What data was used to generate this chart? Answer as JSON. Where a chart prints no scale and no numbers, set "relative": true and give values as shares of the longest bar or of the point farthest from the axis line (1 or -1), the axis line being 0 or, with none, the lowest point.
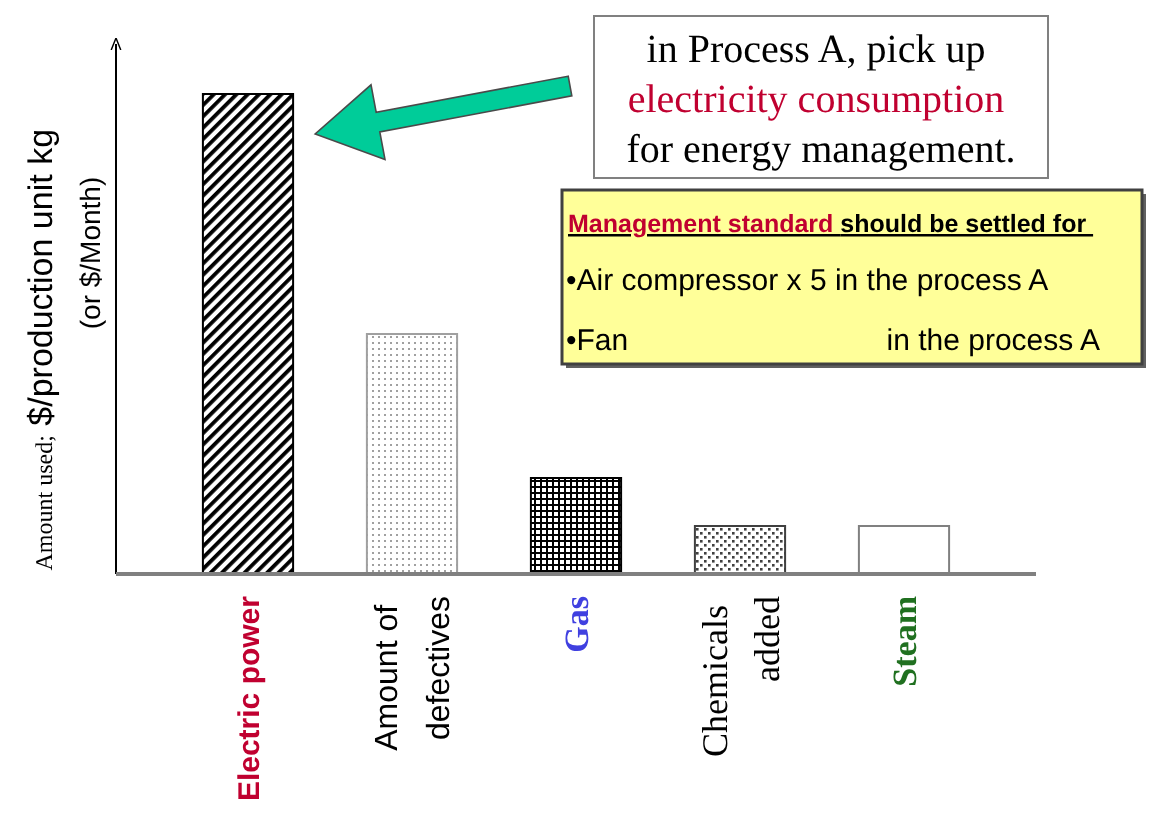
{
  "chart_data": {
    "type": "bar",
    "categories": [
      "Electric power",
      "Amount of\ndefectives",
      "Gas",
      "Chemicals\nadded",
      "Steam"
    ],
    "values": [
      1,
      0.5,
      0.2,
      0.1,
      0.1
    ],
    "colors": [
      "#000000",
      "#a0a0a0",
      "#000000",
      "#404040",
      "#ffffff"
    ],
    "relative": true,
    "ylabel": "Amount used; $/production unit kg\n(or $/Month)",
    "annotations": [
      "in Process A, pick up\nelectricity consumption\nfor energy management.",
      "Management standard should be settled for\n•Air compressor x 5 in the process A\n•Fan\tin the process A"
    ]
  }
}
